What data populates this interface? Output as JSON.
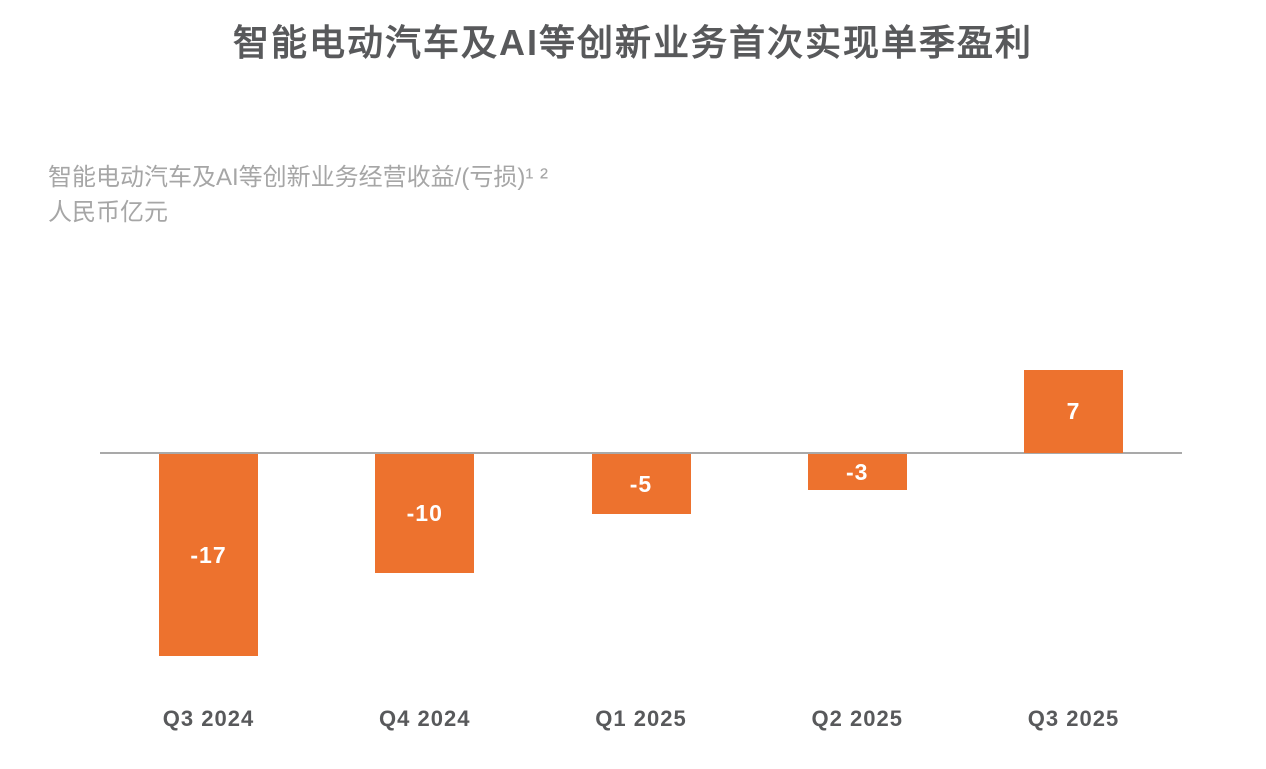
{
  "page": {
    "title": "智能电动汽车及AI等创新业务首次实现单季盈利",
    "subtitle_line1": "智能电动汽车及AI等创新业务经营收益/(亏损)¹ ²",
    "subtitle_line2": "人民币亿元"
  },
  "colors": {
    "bar": "#ED722E",
    "bar_label": "#FFFFFF",
    "title_text": "#58595B",
    "subtitle_text": "#A6A6A6",
    "axis_line": "#A9A9A9"
  },
  "chart_data": {
    "type": "bar",
    "title": "智能电动汽车及AI等创新业务首次实现单季盈利",
    "subtitle": "智能电动汽车及AI等创新业务经营收益/(亏损)¹ ²",
    "unit_label": "人民币亿元",
    "categories": [
      "Q3 2024",
      "Q4 2024",
      "Q1 2025",
      "Q2 2025",
      "Q3 2025"
    ],
    "values": [
      -17,
      -10,
      -5,
      -3,
      7
    ],
    "value_labels": [
      "-17",
      "-10",
      "-5",
      "-3",
      "7"
    ],
    "baseline": 0,
    "grid": false,
    "legend": false,
    "bar_color": "#ED722E",
    "value_label_position": "inside-center"
  }
}
